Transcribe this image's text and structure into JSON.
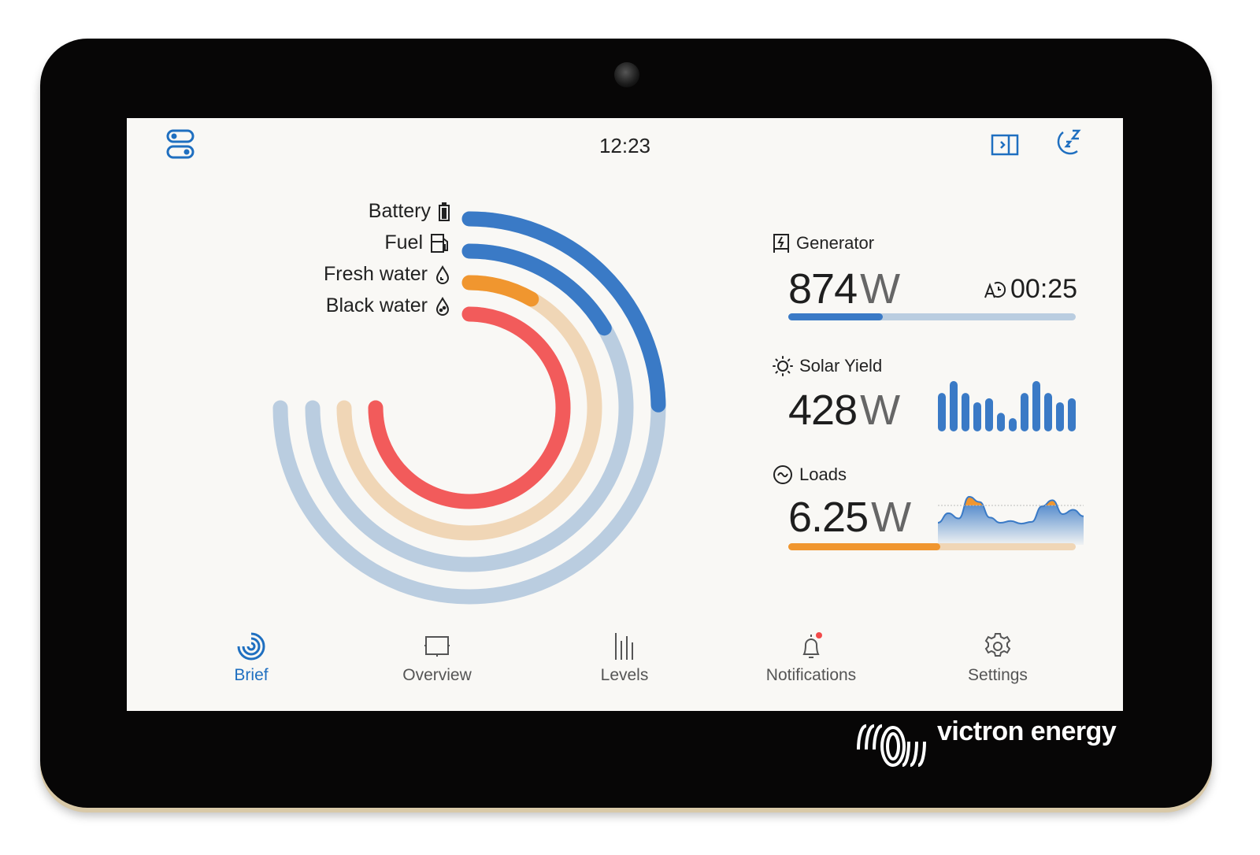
{
  "header": {
    "time": "12:23",
    "left_icon": "toggles-icon",
    "right_icons": [
      "sidebar-toggle-icon",
      "sleep-icon"
    ]
  },
  "levels": [
    {
      "label": "Battery",
      "icon": "battery-icon",
      "percent": 33,
      "color": "#3a7ac6",
      "track": "#bacde0"
    },
    {
      "label": "Fuel",
      "icon": "fuel-pump-icon",
      "percent": 22,
      "color": "#3a7ac6",
      "track": "#bacde0"
    },
    {
      "label": "Fresh water",
      "icon": "water-drop-icon",
      "percent": 11,
      "color": "#f0962f",
      "track": "#f0d6b6"
    },
    {
      "label": "Black water",
      "icon": "black-water-drop-icon",
      "percent": 100,
      "color": "#f25b5b",
      "track": "#f8c4c4"
    }
  ],
  "generator": {
    "title": "Generator",
    "value": "874",
    "unit": "W",
    "runtime": "00:25",
    "runtime_icon": "auto-timer-icon",
    "load_percent": 33,
    "bar_color": "#3a7ac6",
    "bar_track": "#bacde0"
  },
  "solar": {
    "title": "Solar Yield",
    "value": "428",
    "unit": "W",
    "history": [
      145,
      190,
      145,
      110,
      125,
      70,
      50,
      145,
      190,
      145,
      110,
      125
    ],
    "bar_color": "#3a7ac6"
  },
  "loads": {
    "title": "Loads",
    "value": "6.25",
    "unit": "W",
    "load_percent": 53,
    "bar_color": "#f0962f",
    "bar_track": "#f0d6b6",
    "history": [
      40,
      62,
      50,
      100,
      88,
      52,
      40,
      44,
      38,
      42,
      78,
      92,
      60,
      70,
      55
    ]
  },
  "nav": [
    {
      "label": "Brief",
      "icon": "brief-icon",
      "active": true
    },
    {
      "label": "Overview",
      "icon": "overview-icon"
    },
    {
      "label": "Levels",
      "icon": "levels-icon"
    },
    {
      "label": "Notifications",
      "icon": "bell-icon",
      "badge": true
    },
    {
      "label": "Settings",
      "icon": "gear-icon"
    }
  ],
  "brand": {
    "logo_text": "victron energy",
    "accent": "#1f6fc0",
    "alert": "#f24a4a"
  }
}
